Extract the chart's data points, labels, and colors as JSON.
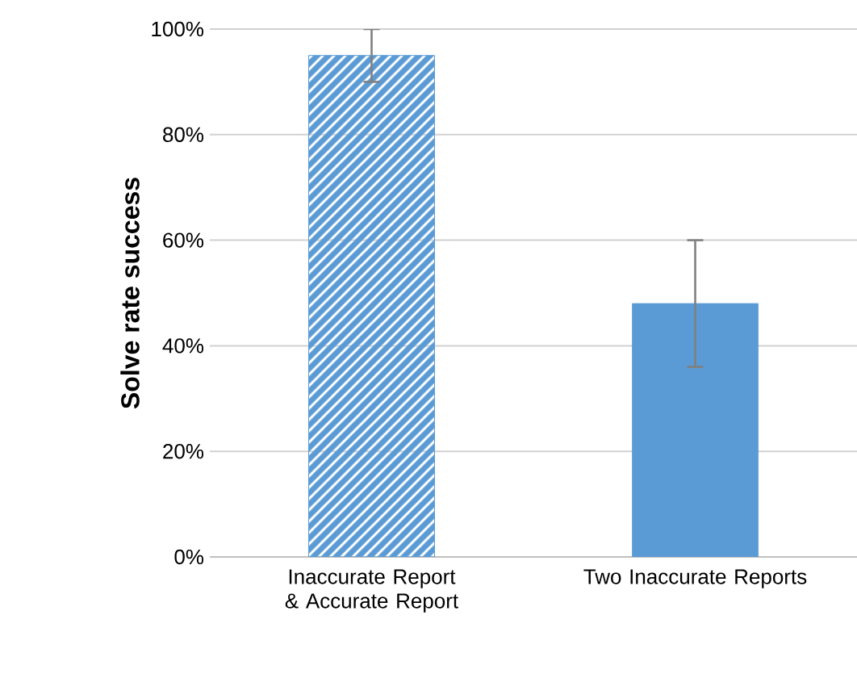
{
  "chart_data": {
    "type": "bar",
    "ylabel": "Solve rate success",
    "categories": [
      "Inaccurate Report &  Accurate Report",
      "Two Inaccurate Reports"
    ],
    "values": [
      95,
      48
    ],
    "errors": [
      5,
      12
    ],
    "colors": [
      "#5b9bd5",
      "#5b9bd5"
    ],
    "ylim": [
      0,
      100
    ],
    "yticks": [
      {
        "value": 0,
        "label": "0%"
      },
      {
        "value": 20,
        "label": "20%"
      },
      {
        "value": 40,
        "label": "40%"
      },
      {
        "value": 60,
        "label": "60%"
      },
      {
        "value": 80,
        "label": "80%"
      },
      {
        "value": 100,
        "label": "100%"
      }
    ],
    "grid": "y"
  }
}
